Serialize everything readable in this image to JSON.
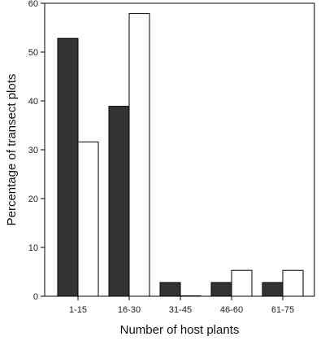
{
  "chart_data": {
    "type": "bar",
    "xlabel": "Number of host plants",
    "ylabel": "Percentage of transect plots",
    "categories": [
      "1-15",
      "16-30",
      "31-45",
      "46-60",
      "61-75"
    ],
    "series": [
      {
        "values": [
          52.8,
          38.9,
          2.8,
          2.8,
          2.8
        ],
        "color": "#333333"
      },
      {
        "values": [
          31.6,
          57.9,
          0.0,
          5.3,
          5.3
        ],
        "color": "#ffffff"
      }
    ],
    "ylim": [
      0,
      60
    ],
    "yticks": [
      0,
      10,
      20,
      30,
      40,
      50,
      60
    ],
    "grid": false,
    "legend": "none"
  }
}
